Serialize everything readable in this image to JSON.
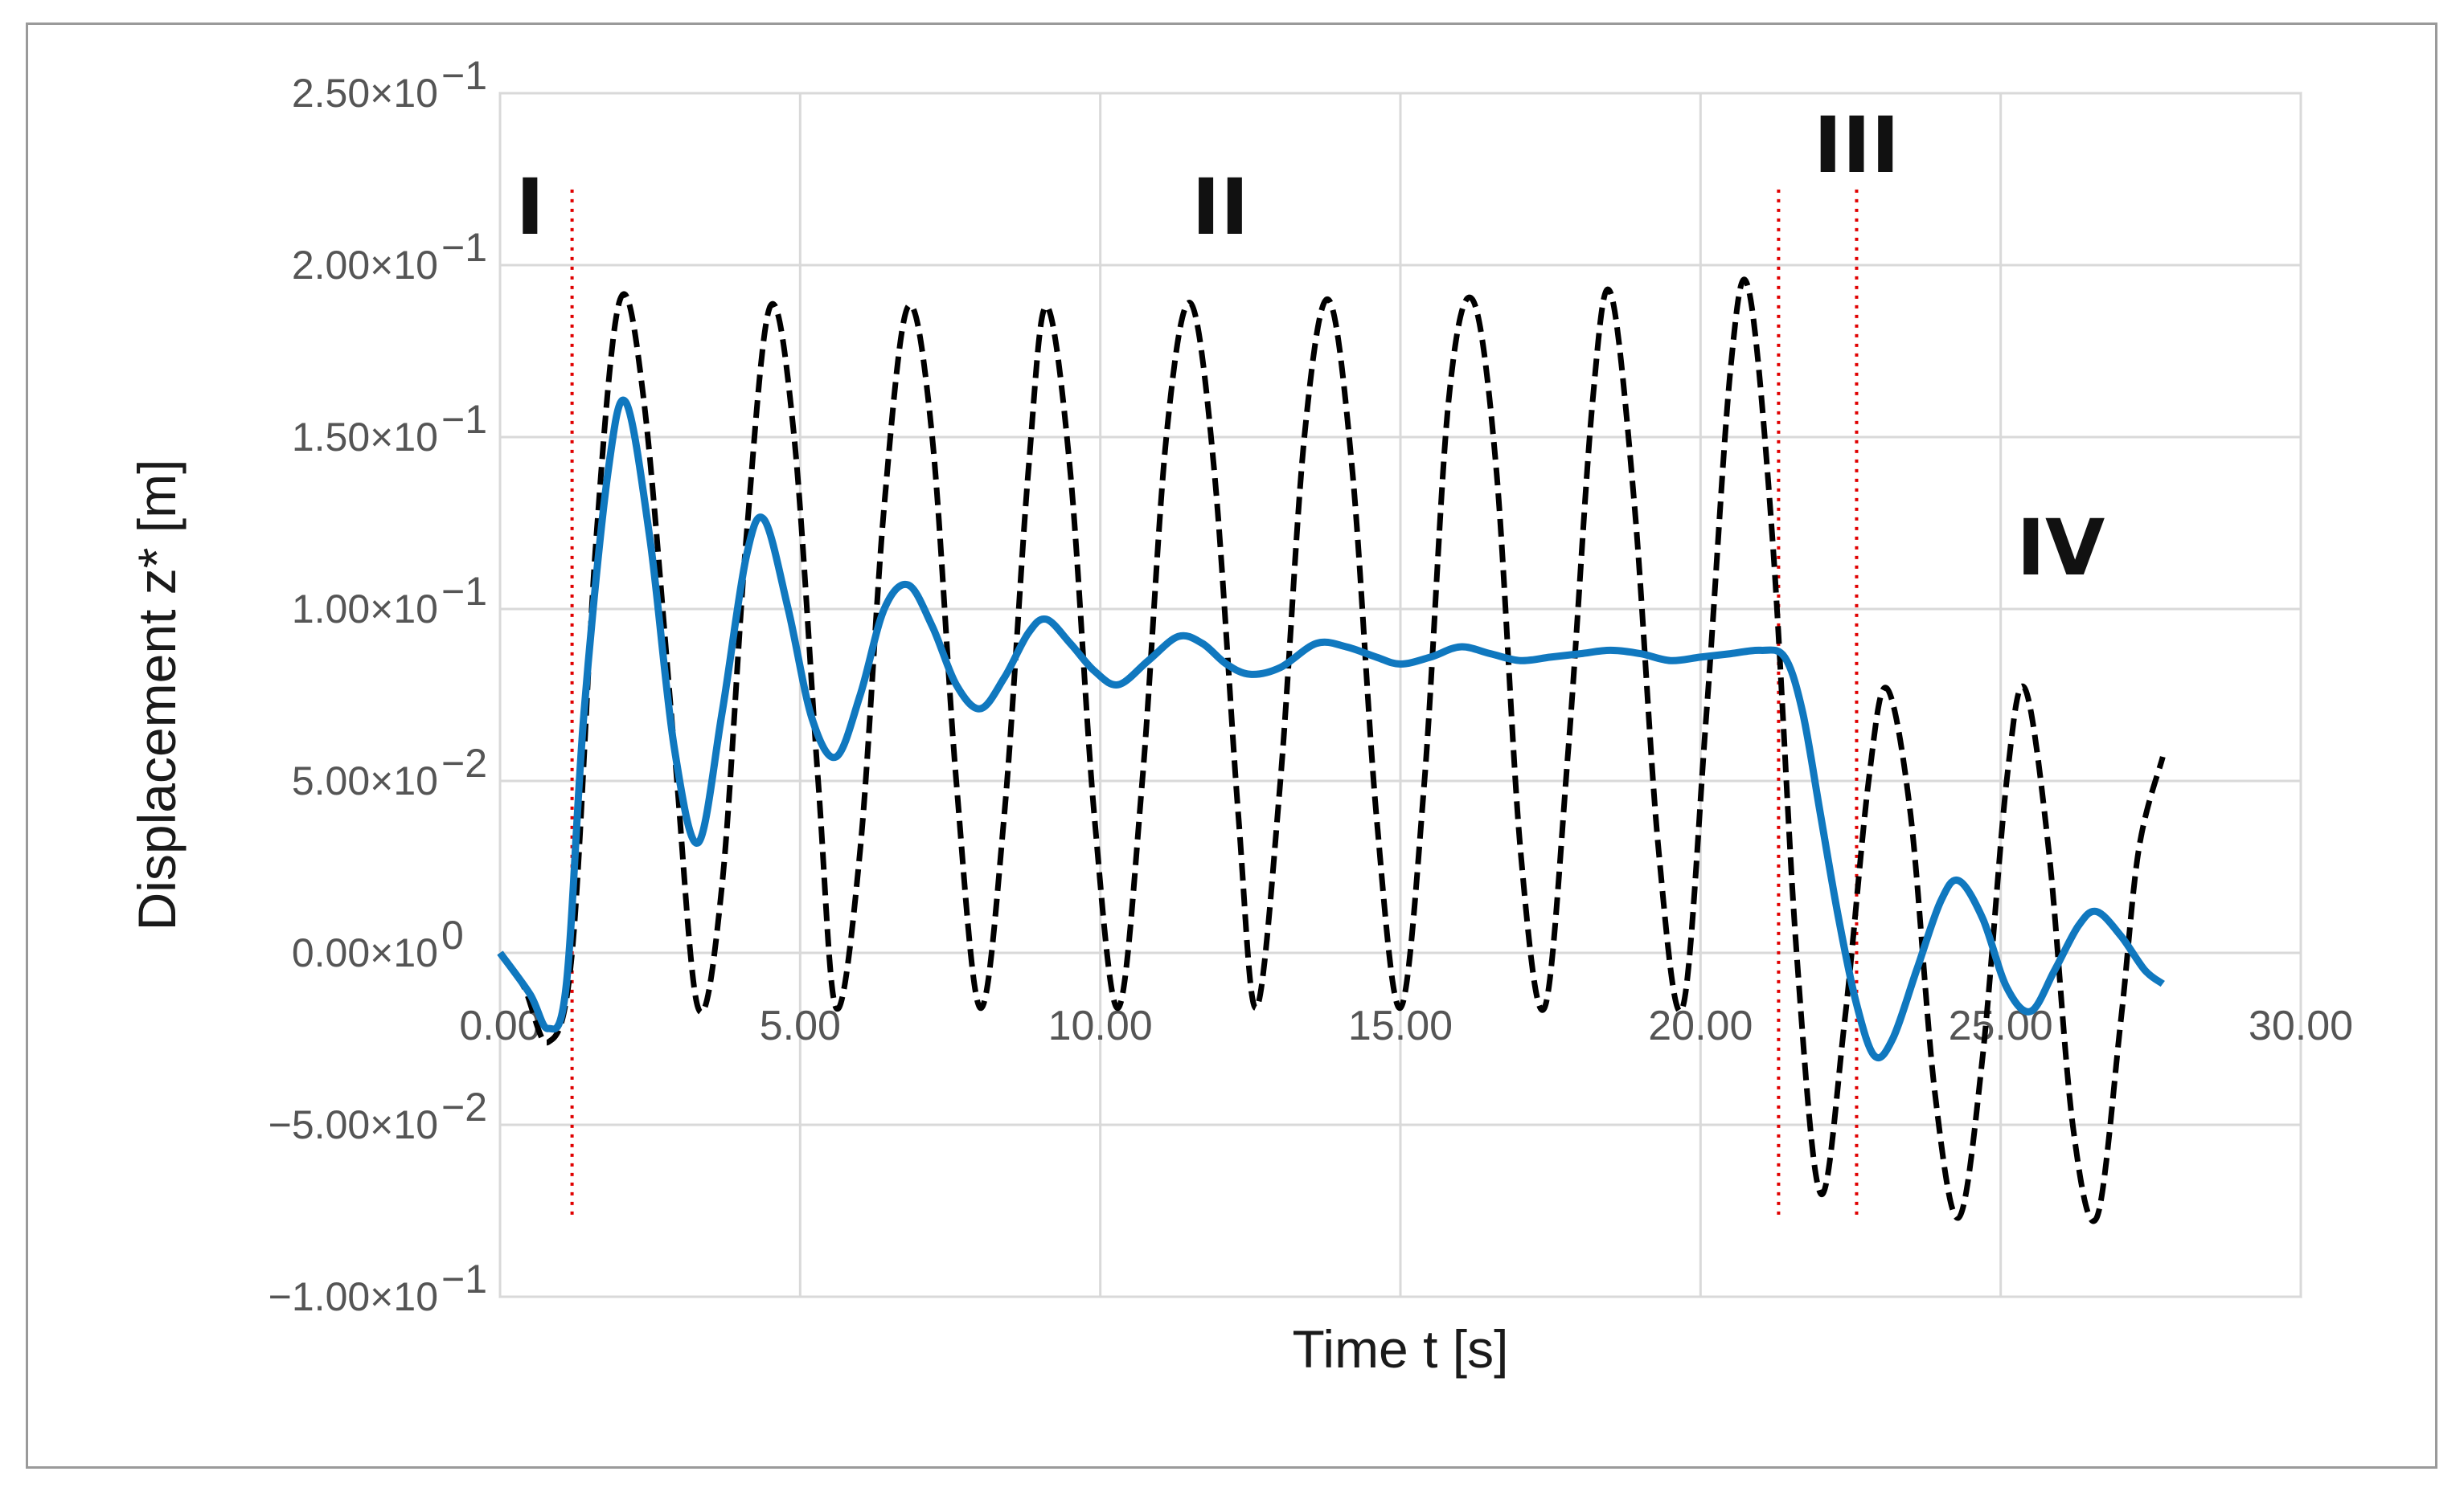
{
  "chart_data": {
    "type": "line",
    "title": "",
    "xlabel": "Time t [s]",
    "ylabel": "Displacement z* [m]",
    "xlim": [
      0,
      30
    ],
    "ylim": [
      -0.1,
      0.25
    ],
    "grid": true,
    "x_ticks": [
      "0.00",
      "5.00",
      "10.00",
      "15.00",
      "20.00",
      "25.00",
      "30.00"
    ],
    "y_ticks": [
      {
        "value": 0.25,
        "mantissa": "2.50×10",
        "exp": "−1"
      },
      {
        "value": 0.2,
        "mantissa": "2.00×10",
        "exp": "−1"
      },
      {
        "value": 0.15,
        "mantissa": "1.50×10",
        "exp": "−1"
      },
      {
        "value": 0.1,
        "mantissa": "1.00×10",
        "exp": "−1"
      },
      {
        "value": 0.05,
        "mantissa": "5.00×10",
        "exp": "−2"
      },
      {
        "value": 0.0,
        "mantissa": "0.00×10",
        "exp": "0"
      },
      {
        "value": -0.05,
        "mantissa": "−5.00×10",
        "exp": "−2"
      },
      {
        "value": -0.1,
        "mantissa": "−1.00×10",
        "exp": "−1"
      }
    ],
    "regions": [
      {
        "label": "I",
        "x": 0.5
      },
      {
        "label": "II",
        "x": 12
      },
      {
        "label": "III",
        "x": 22.6
      },
      {
        "label": "IV",
        "x": 26
      }
    ],
    "region_boundaries": [
      1.2,
      21.3,
      22.6
    ],
    "series": [
      {
        "style": "dashed",
        "color": "#000000",
        "points": [
          [
            0.0,
            0.0
          ],
          [
            0.4,
            -0.01
          ],
          [
            0.8,
            -0.026
          ],
          [
            1.2,
            0.0
          ],
          [
            1.6,
            0.12
          ],
          [
            2.0,
            0.19
          ],
          [
            2.4,
            0.16
          ],
          [
            2.9,
            0.06
          ],
          [
            3.3,
            -0.016
          ],
          [
            3.7,
            0.02
          ],
          [
            4.1,
            0.12
          ],
          [
            4.5,
            0.188
          ],
          [
            4.9,
            0.15
          ],
          [
            5.3,
            0.05
          ],
          [
            5.6,
            -0.016
          ],
          [
            6.0,
            0.03
          ],
          [
            6.4,
            0.13
          ],
          [
            6.8,
            0.188
          ],
          [
            7.2,
            0.15
          ],
          [
            7.6,
            0.05
          ],
          [
            8.0,
            -0.016
          ],
          [
            8.4,
            0.04
          ],
          [
            8.8,
            0.14
          ],
          [
            9.1,
            0.188
          ],
          [
            9.5,
            0.14
          ],
          [
            9.9,
            0.04
          ],
          [
            10.3,
            -0.016
          ],
          [
            10.7,
            0.05
          ],
          [
            11.1,
            0.15
          ],
          [
            11.5,
            0.189
          ],
          [
            11.9,
            0.14
          ],
          [
            12.3,
            0.04
          ],
          [
            12.6,
            -0.016
          ],
          [
            13.0,
            0.05
          ],
          [
            13.4,
            0.15
          ],
          [
            13.8,
            0.19
          ],
          [
            14.2,
            0.14
          ],
          [
            14.6,
            0.04
          ],
          [
            15.0,
            -0.016
          ],
          [
            15.4,
            0.05
          ],
          [
            15.8,
            0.16
          ],
          [
            16.2,
            0.19
          ],
          [
            16.6,
            0.14
          ],
          [
            17.0,
            0.03
          ],
          [
            17.4,
            -0.016
          ],
          [
            17.8,
            0.06
          ],
          [
            18.2,
            0.16
          ],
          [
            18.5,
            0.192
          ],
          [
            18.9,
            0.13
          ],
          [
            19.3,
            0.03
          ],
          [
            19.7,
            -0.016
          ],
          [
            20.1,
            0.07
          ],
          [
            20.5,
            0.17
          ],
          [
            20.8,
            0.193
          ],
          [
            21.2,
            0.12
          ],
          [
            21.6,
            0.0
          ],
          [
            22.0,
            -0.07
          ],
          [
            22.4,
            -0.02
          ],
          [
            22.8,
            0.05
          ],
          [
            23.1,
            0.077
          ],
          [
            23.5,
            0.04
          ],
          [
            23.9,
            -0.04
          ],
          [
            24.3,
            -0.077
          ],
          [
            24.7,
            -0.03
          ],
          [
            25.1,
            0.05
          ],
          [
            25.4,
            0.077
          ],
          [
            25.8,
            0.03
          ],
          [
            26.2,
            -0.05
          ],
          [
            26.6,
            -0.077
          ],
          [
            27.0,
            -0.02
          ],
          [
            27.3,
            0.03
          ],
          [
            27.7,
            0.057
          ]
        ]
      },
      {
        "style": "solid",
        "color": "#1078bf",
        "points": [
          [
            0.0,
            0.0
          ],
          [
            0.5,
            -0.012
          ],
          [
            0.8,
            -0.022
          ],
          [
            1.1,
            -0.01
          ],
          [
            1.4,
            0.07
          ],
          [
            1.8,
            0.14
          ],
          [
            2.1,
            0.16
          ],
          [
            2.5,
            0.12
          ],
          [
            2.9,
            0.06
          ],
          [
            3.3,
            0.032
          ],
          [
            3.7,
            0.07
          ],
          [
            4.1,
            0.115
          ],
          [
            4.4,
            0.126
          ],
          [
            4.8,
            0.1
          ],
          [
            5.2,
            0.068
          ],
          [
            5.6,
            0.057
          ],
          [
            6.0,
            0.075
          ],
          [
            6.4,
            0.1
          ],
          [
            6.8,
            0.107
          ],
          [
            7.2,
            0.095
          ],
          [
            7.6,
            0.078
          ],
          [
            8.0,
            0.071
          ],
          [
            8.4,
            0.08
          ],
          [
            8.8,
            0.093
          ],
          [
            9.1,
            0.097
          ],
          [
            9.5,
            0.09
          ],
          [
            9.9,
            0.082
          ],
          [
            10.3,
            0.078
          ],
          [
            10.8,
            0.085
          ],
          [
            11.3,
            0.092
          ],
          [
            11.7,
            0.09
          ],
          [
            12.1,
            0.084
          ],
          [
            12.5,
            0.081
          ],
          [
            13.0,
            0.083
          ],
          [
            13.6,
            0.09
          ],
          [
            14.1,
            0.089
          ],
          [
            14.6,
            0.086
          ],
          [
            15.0,
            0.084
          ],
          [
            15.5,
            0.086
          ],
          [
            16.0,
            0.089
          ],
          [
            16.5,
            0.087
          ],
          [
            17.0,
            0.085
          ],
          [
            17.5,
            0.086
          ],
          [
            18.0,
            0.087
          ],
          [
            18.5,
            0.088
          ],
          [
            19.0,
            0.087
          ],
          [
            19.5,
            0.085
          ],
          [
            20.0,
            0.086
          ],
          [
            20.5,
            0.087
          ],
          [
            21.0,
            0.088
          ],
          [
            21.4,
            0.086
          ],
          [
            21.7,
            0.07
          ],
          [
            22.0,
            0.04
          ],
          [
            22.3,
            0.01
          ],
          [
            22.6,
            -0.015
          ],
          [
            22.9,
            -0.03
          ],
          [
            23.2,
            -0.025
          ],
          [
            23.6,
            -0.005
          ],
          [
            24.0,
            0.015
          ],
          [
            24.3,
            0.021
          ],
          [
            24.7,
            0.01
          ],
          [
            25.1,
            -0.01
          ],
          [
            25.5,
            -0.017
          ],
          [
            25.9,
            -0.005
          ],
          [
            26.3,
            0.008
          ],
          [
            26.6,
            0.012
          ],
          [
            27.0,
            0.005
          ],
          [
            27.4,
            -0.005
          ],
          [
            27.7,
            -0.009
          ]
        ]
      }
    ]
  }
}
